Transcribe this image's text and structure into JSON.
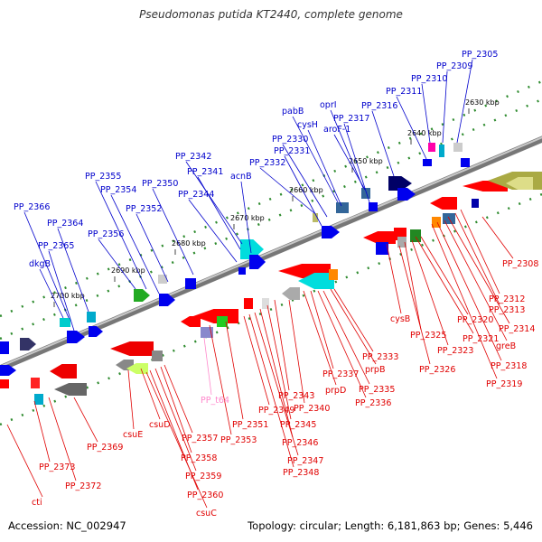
{
  "title": "Pseudomonas putida KT2440, complete genome",
  "footer": {
    "accession": "Accession: NC_002947",
    "topology": "Topology: circular; Length: 6,181,863 bp; Genes: 5,446"
  },
  "colors": {
    "forward_label": "#0000cc",
    "reverse_label": "#e00000",
    "rna_label": "#ff88cc",
    "backbone": "#777777",
    "tick": "#2e8b2e"
  },
  "scale_ticks": [
    "2630 kbp",
    "2640 kbp",
    "2650 kbp",
    "2660 kbp",
    "2670 kbp",
    "2680 kbp",
    "2690 kbp",
    "2700 kbp"
  ],
  "forward_genes": [
    "PP_2305",
    "PP_2309",
    "PP_2310",
    "PP_2311",
    "PP_2316",
    "oprI",
    "PP_2317",
    "aroF-1",
    "pabB",
    "cysH",
    "PP_2330",
    "PP_2331",
    "PP_2332",
    "acnB",
    "PP_2342",
    "PP_2341",
    "PP_2344",
    "PP_2350",
    "PP_2352",
    "PP_2355",
    "PP_2354",
    "PP_2356",
    "PP_2366",
    "PP_2364",
    "PP_2365",
    "dkgB"
  ],
  "reverse_genes": [
    "PP_2308",
    "PP_2312",
    "PP_2313",
    "PP_2314",
    "greB",
    "PP_2318",
    "PP_2319",
    "PP_2320",
    "PP_2321",
    "PP_2323",
    "PP_2325",
    "cysB",
    "PP_2326",
    "PP_2333",
    "prpB",
    "PP_2335",
    "PP_2336",
    "PP_2337",
    "prpD",
    "PP_2340",
    "PP_2343",
    "PP_2345",
    "PP_2346",
    "PP_2347",
    "PP_2348",
    "PP_2349",
    "PP_2351",
    "PP_2353",
    "PP_2357",
    "PP_2358",
    "PP_2359",
    "PP_2360",
    "csuC",
    "csuD",
    "csuE",
    "PP_2369",
    "PP_2372",
    "PP_2373",
    "cti"
  ],
  "rna_genes": [
    "PP_t64"
  ]
}
